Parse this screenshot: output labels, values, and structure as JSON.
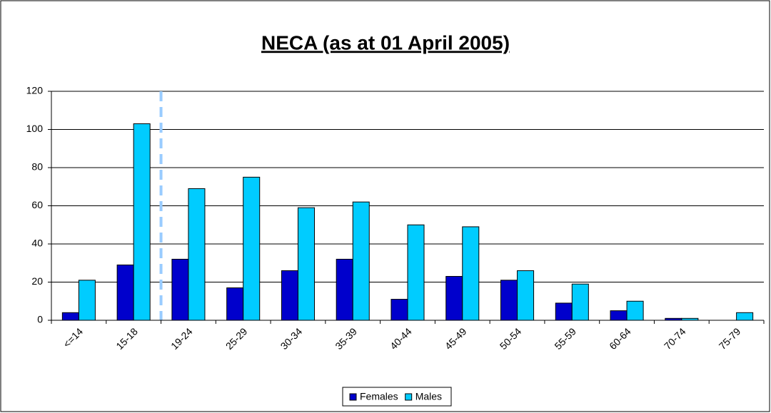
{
  "chart_data": {
    "type": "bar",
    "title": "NECA (as at 01 April 2005)",
    "categories": [
      "<=14",
      "15-18",
      "19-24",
      "25-29",
      "30-34",
      "35-39",
      "40-44",
      "45-49",
      "50-54",
      "55-59",
      "60-64",
      "70-74",
      "75-79"
    ],
    "series": [
      {
        "name": "Females",
        "color": "#0000cc",
        "values": [
          4,
          29,
          32,
          17,
          26,
          32,
          11,
          23,
          21,
          9,
          5,
          1,
          0
        ]
      },
      {
        "name": "Males",
        "color": "#00ccff",
        "values": [
          21,
          103,
          69,
          75,
          59,
          62,
          50,
          49,
          26,
          19,
          10,
          1,
          4
        ]
      }
    ],
    "ylim": [
      0,
      120
    ],
    "yticks": [
      0,
      20,
      40,
      60,
      80,
      100,
      120
    ],
    "grid": true,
    "legend": "bottom"
  }
}
